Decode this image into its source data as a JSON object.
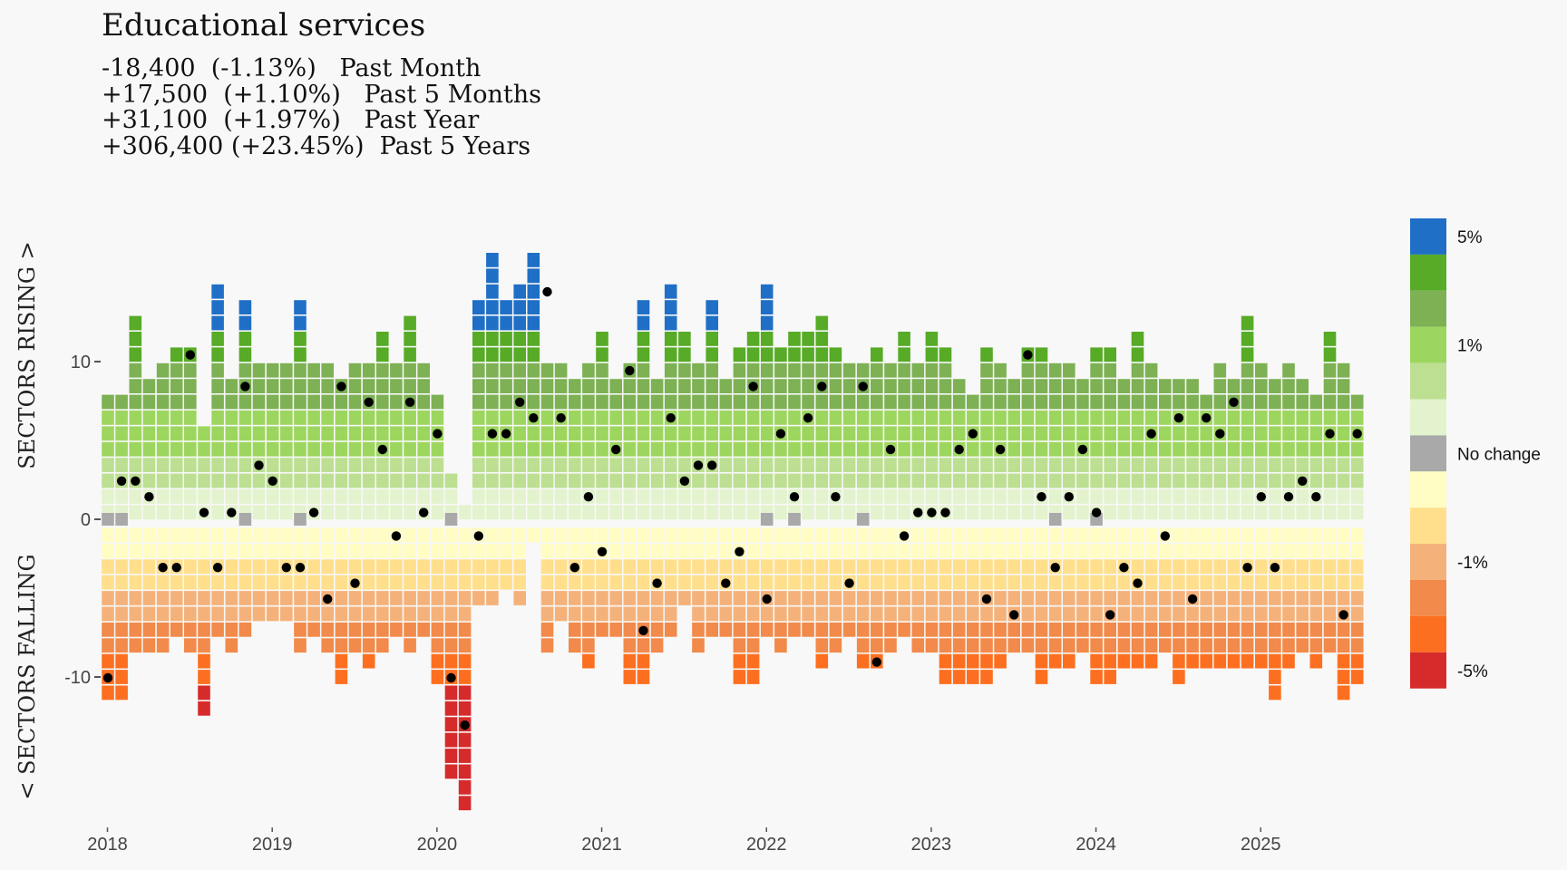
{
  "header": {
    "title": "Educational services",
    "stats": [
      {
        "change": "-18,400",
        "pct": "(-1.13%)",
        "period": "Past Month",
        "text": "-18,400  (-1.13%)   Past Month"
      },
      {
        "change": "+17,500",
        "pct": "(+1.10%)",
        "period": "Past 5 Months",
        "text": "+17,500  (+1.10%)   Past 5 Months"
      },
      {
        "change": "+31,100",
        "pct": "(+1.97%)",
        "period": "Past Year",
        "text": "+31,100  (+1.97%)   Past Year"
      },
      {
        "change": "+306,400",
        "pct": "(+23.45%)",
        "period": "Past 5 Years",
        "text": "+306,400 (+23.45%)  Past 5 Years"
      }
    ]
  },
  "chart_data": {
    "type": "bar",
    "subtype": "monthly stacked tile count of rising and falling sectors, with dot for the selected sector",
    "ylabel_top": "SECTORS RISING >",
    "ylabel_bottom": "< SECTORS FALLING",
    "y_ticks": [
      {
        "value": 10,
        "label": "10"
      },
      {
        "value": 0,
        "label": "0"
      },
      {
        "value": -10,
        "label": "-10"
      }
    ],
    "x_ticks": [
      "2018",
      "2019",
      "2020",
      "2021",
      "2022",
      "2023",
      "2024",
      "2025"
    ],
    "start": "2018-01",
    "months": [
      "2018-01",
      "2018-02",
      "2018-03",
      "2018-04",
      "2018-05",
      "2018-06",
      "2018-07",
      "2018-08",
      "2018-09",
      "2018-10",
      "2018-11",
      "2018-12",
      "2019-01",
      "2019-02",
      "2019-03",
      "2019-04",
      "2019-05",
      "2019-06",
      "2019-07",
      "2019-08",
      "2019-09",
      "2019-10",
      "2019-11",
      "2019-12",
      "2020-01",
      "2020-02",
      "2020-03",
      "2020-04",
      "2020-05",
      "2020-06",
      "2020-07",
      "2020-08",
      "2020-09",
      "2020-10",
      "2020-11",
      "2020-12",
      "2021-01",
      "2021-02",
      "2021-03",
      "2021-04",
      "2021-05",
      "2021-06",
      "2021-07",
      "2021-08",
      "2021-09",
      "2021-10",
      "2021-11",
      "2021-12",
      "2022-01",
      "2022-02",
      "2022-03",
      "2022-04",
      "2022-05",
      "2022-06",
      "2022-07",
      "2022-08",
      "2022-09",
      "2022-10",
      "2022-11",
      "2022-12",
      "2023-01",
      "2023-02",
      "2023-03",
      "2023-04",
      "2023-05",
      "2023-06",
      "2023-07",
      "2023-08",
      "2023-09",
      "2023-10",
      "2023-11",
      "2023-12",
      "2024-01",
      "2024-02",
      "2024-03",
      "2024-04",
      "2024-05",
      "2024-06",
      "2024-07",
      "2024-08",
      "2024-09",
      "2024-10",
      "2024-11",
      "2024-12",
      "2025-01",
      "2025-02",
      "2025-03",
      "2025-04",
      "2025-05",
      "2025-06",
      "2025-07",
      "2025-08"
    ],
    "rising_counts": [
      8,
      8,
      13,
      9,
      10,
      11,
      11,
      6,
      15,
      9,
      14,
      10,
      10,
      10,
      14,
      10,
      10,
      9,
      10,
      10,
      12,
      10,
      13,
      10,
      8,
      3,
      1,
      14,
      17,
      14,
      15,
      17,
      10,
      10,
      9,
      10,
      12,
      9,
      10,
      14,
      9,
      15,
      12,
      10,
      14,
      9,
      11,
      12,
      15,
      11,
      12,
      12,
      13,
      11,
      10,
      10,
      11,
      10,
      12,
      10,
      12,
      11,
      9,
      8,
      11,
      10,
      9,
      11,
      11,
      10,
      10,
      9,
      11,
      11,
      9,
      12,
      10,
      9,
      9,
      9,
      8,
      10,
      9,
      13,
      10,
      9,
      10,
      9,
      8,
      12,
      10,
      8
    ],
    "falling_counts": [
      11,
      11,
      8,
      8,
      8,
      7,
      8,
      12,
      7,
      8,
      7,
      6,
      6,
      6,
      8,
      7,
      8,
      10,
      8,
      9,
      8,
      7,
      8,
      7,
      10,
      16,
      18,
      5,
      5,
      4,
      5,
      1,
      8,
      6,
      8,
      9,
      7,
      7,
      10,
      10,
      8,
      7,
      5,
      8,
      7,
      7,
      10,
      10,
      7,
      8,
      7,
      7,
      9,
      8,
      7,
      9,
      9,
      8,
      7,
      8,
      8,
      10,
      10,
      10,
      10,
      9,
      8,
      8,
      10,
      9,
      9,
      8,
      10,
      10,
      9,
      9,
      9,
      8,
      10,
      9,
      9,
      9,
      9,
      9,
      9,
      11,
      9,
      8,
      9,
      8,
      11,
      10
    ],
    "selected_sector_rank": [
      -10,
      3,
      3,
      2,
      -3,
      -3,
      11,
      1,
      -3,
      1,
      9,
      4,
      3,
      -3,
      -3,
      1,
      -5,
      9,
      -4,
      8,
      5,
      -1,
      8,
      1,
      6,
      -10,
      -13,
      -1,
      6,
      6,
      8,
      7,
      15,
      7,
      -3,
      2,
      -2,
      5,
      10,
      -7,
      -4,
      7,
      3,
      4,
      4,
      -4,
      -2,
      9,
      -5,
      6,
      2,
      7,
      9,
      2,
      -4,
      9,
      -9,
      5,
      -1,
      1,
      1,
      1,
      5,
      6,
      -5,
      5,
      -6,
      11,
      2,
      -3,
      2,
      5,
      1,
      -6,
      -3,
      -4,
      6,
      -1,
      7,
      -5,
      7,
      6,
      8,
      -3,
      2,
      -3,
      2,
      3,
      2,
      6,
      -6,
      6
    ],
    "legend": {
      "items": [
        {
          "label": "5%",
          "color": "#1f6fc6"
        },
        {
          "label": "",
          "color": "#57ab27"
        },
        {
          "label": "",
          "color": "#7db154"
        },
        {
          "label": "1%",
          "color": "#9dd65e"
        },
        {
          "label": "",
          "color": "#bddf92"
        },
        {
          "label": "",
          "color": "#e3f3cd"
        },
        {
          "label": "No change",
          "color": "#a9a9a9"
        },
        {
          "label": "",
          "color": "#fffdc3"
        },
        {
          "label": "",
          "color": "#ffdf8c"
        },
        {
          "label": "-1%",
          "color": "#f4b27a"
        },
        {
          "label": "",
          "color": "#f18a4a"
        },
        {
          "label": "",
          "color": "#fd6f20"
        },
        {
          "label": "-5%",
          "color": "#d62b2b"
        }
      ]
    },
    "colors": {
      "rise_palette": [
        "#e3f3cd",
        "#bddf92",
        "#9dd65e",
        "#7db154",
        "#57ab27",
        "#1f6fc6"
      ],
      "fall_palette": [
        "#fffdc3",
        "#ffdf8c",
        "#f4b27a",
        "#f18a4a",
        "#fd6f20",
        "#d62b2b"
      ],
      "no_change": "#a9a9a9",
      "dot": "#000000",
      "background": "#f8f8f8"
    },
    "no_change_months": [
      0,
      1,
      10,
      14,
      25,
      48,
      50,
      55,
      69,
      72
    ]
  }
}
